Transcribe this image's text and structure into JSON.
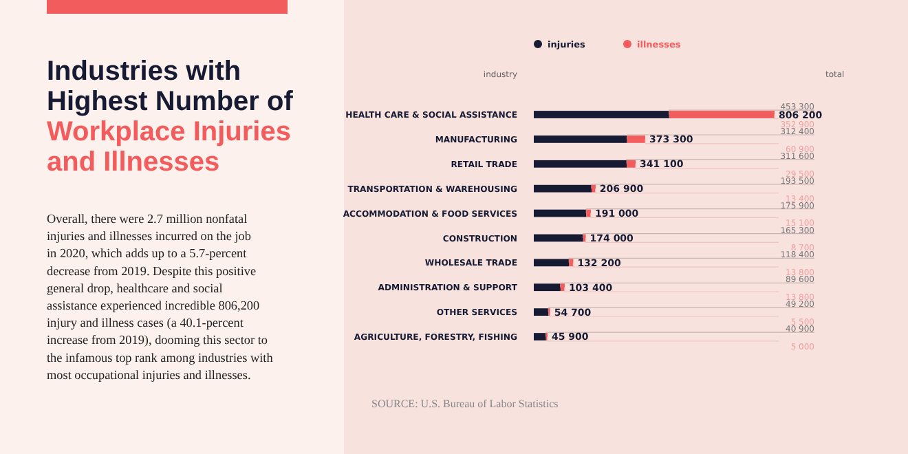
{
  "chart_data": {
    "type": "bar",
    "orientation": "horizontal",
    "stacked": true,
    "title": "Industries with Highest Number of",
    "subtitle": "Workplace Injuries and Illnesses",
    "ylabel": "industry",
    "categories": [
      "HEALTH CARE & SOCIAL ASSISTANCE",
      "MANUFACTURING",
      "RETAIL TRADE",
      "TRANSPORTATION & WAREHOUSING",
      "ACCOMMODATION & FOOD SERVICES",
      "CONSTRUCTION",
      "WHOLESALE TRADE",
      "ADMINISTRATION & SUPPORT",
      "OTHER SERVICES",
      "AGRICULTURE, FORESTRY, FISHING"
    ],
    "series": [
      {
        "name": "injuries",
        "color": "#161b33",
        "values": [
          453300,
          312400,
          311600,
          193500,
          175900,
          165300,
          118400,
          89600,
          49200,
          40900
        ],
        "value_labels": [
          "453 300",
          "312 400",
          "311 600",
          "193 500",
          "175 900",
          "165 300",
          "118 400",
          "89 600",
          "49 200",
          "40 900"
        ]
      },
      {
        "name": "illnesses",
        "color": "#f25c5c",
        "values": [
          352900,
          60900,
          29500,
          13400,
          15100,
          8700,
          13800,
          13800,
          5500,
          5000
        ],
        "value_labels": [
          "352 900",
          "60 900",
          "29 500",
          "13 400",
          "15 100",
          "8 700",
          "13 800",
          "13 800",
          "5 500",
          "5 000"
        ]
      }
    ],
    "totals": [
      "806 200",
      "373 300",
      "341 100",
      "206 900",
      "191 000",
      "174 000",
      "132 200",
      "103 400",
      "54 700",
      "45 900"
    ],
    "legend": "top",
    "annotations": [
      "total",
      "Overall, there were 2.7 million nonfatal injuries and illnesses incurred on the job in 2020, which adds up to a 5.7-percent decrease from 2019. Despite this positive general drop, healthcare and social assistance experienced incredible 806,200 injury and illness cases (a 40.1-percent increase from 2019), dooming this sector to the infamous top rank among industries with most occupational injuries and illnesses.",
      "SOURCE: U.S. Bureau of Labor Statistics"
    ]
  }
}
